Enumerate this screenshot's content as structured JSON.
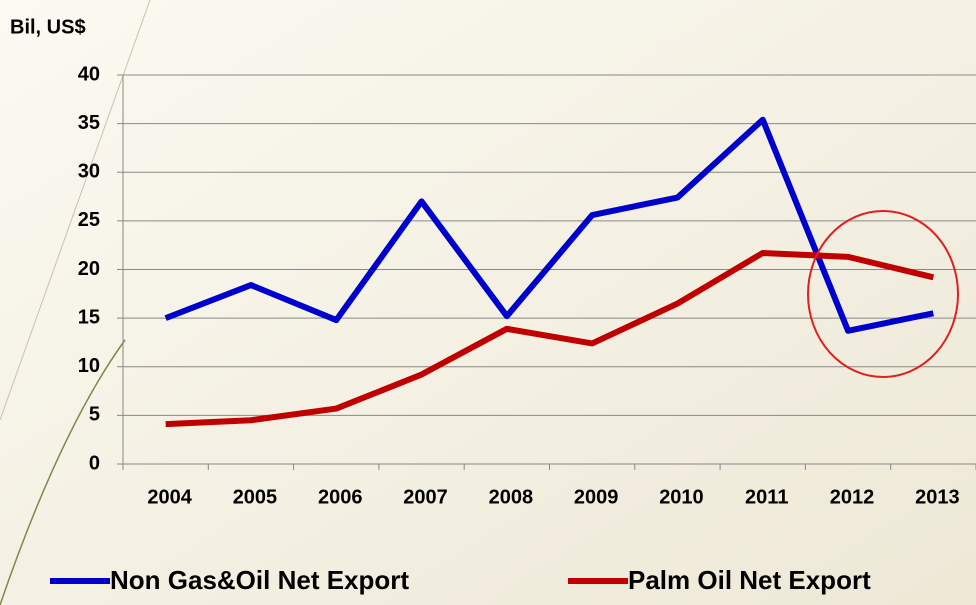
{
  "chart_data": {
    "type": "line",
    "y_label": "Bil, US$",
    "categories": [
      "2004",
      "2005",
      "2006",
      "2007",
      "2008",
      "2009",
      "2010",
      "2011",
      "2012",
      "2013"
    ],
    "series": [
      {
        "name": "Non Gas&Oil Net Export",
        "color": "#0000cc",
        "values": [
          15.0,
          18.4,
          14.8,
          27.0,
          15.2,
          25.6,
          27.4,
          35.4,
          13.7,
          15.5
        ]
      },
      {
        "name": "Palm Oil Net Export",
        "color": "#c00000",
        "values": [
          4.1,
          4.5,
          5.7,
          9.2,
          13.9,
          12.4,
          16.5,
          21.7,
          21.3,
          19.2
        ]
      }
    ],
    "ylim": [
      0,
      40
    ],
    "yticks": [
      0,
      5,
      10,
      15,
      20,
      25,
      30,
      35,
      40
    ],
    "grid": true
  }
}
